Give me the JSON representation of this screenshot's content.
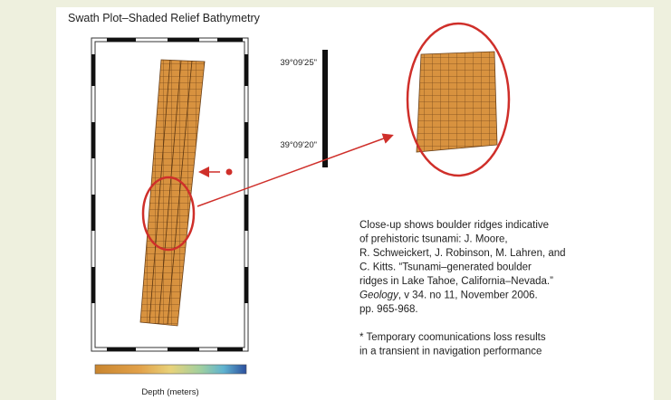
{
  "figure": {
    "title": "Swath Plot–Shaded Relief Bathymetry",
    "scale_labels": [
      "39°09'25\"",
      "39°09'20\""
    ],
    "colorbar_label": "Depth (meters)",
    "caption": [
      "Close-up shows boulder ridges indicative",
      "of prehistoric tsunami: J. Moore,",
      "R. Schweickert, J. Robinson, M. Lahren, and",
      "C. Kitts. “Tsunami–generated boulder",
      "ridges in Lake Tahoe, California–Nevada.”",
      {
        "italic": "Geology",
        "rest": ", v 34. no 11, November 2006."
      },
      "pp. 965-968."
    ],
    "footnote": [
      "* Temporary coomunications loss results",
      "in a transient in navigation performance"
    ]
  }
}
